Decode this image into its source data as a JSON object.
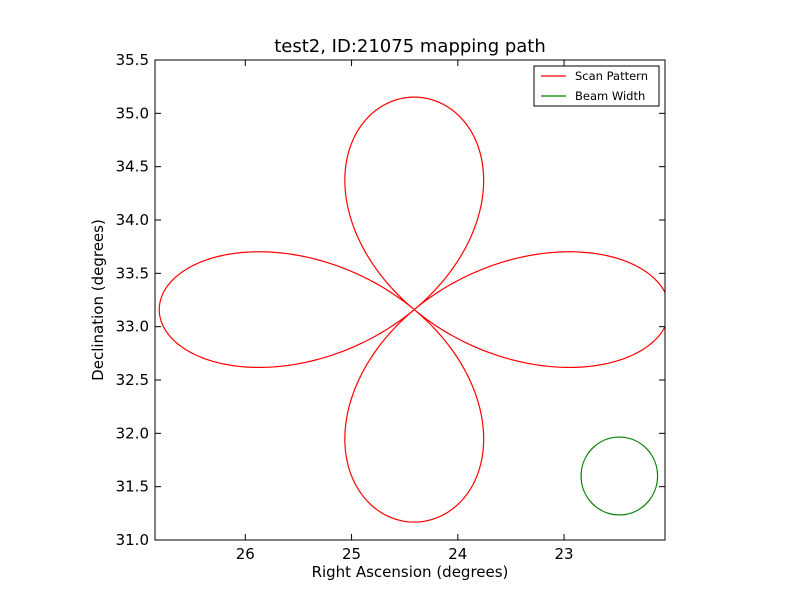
{
  "chart_data": {
    "type": "line",
    "title": "test2, ID:21075 mapping path",
    "xlabel": "Right Ascension (degrees)",
    "ylabel": "Declination (degrees)",
    "xlim": [
      26.85,
      22.05
    ],
    "ylim": [
      31.0,
      35.5
    ],
    "x_inverted": true,
    "xticks": [
      26,
      25,
      24,
      23
    ],
    "xtick_labels": [
      "26",
      "25",
      "24",
      "23"
    ],
    "yticks": [
      31.0,
      31.5,
      32.0,
      32.5,
      33.0,
      33.5,
      34.0,
      34.5,
      35.0,
      35.5
    ],
    "ytick_labels": [
      "31.0",
      "31.5",
      "32.0",
      "32.5",
      "33.0",
      "33.5",
      "34.0",
      "34.5",
      "35.0",
      "35.5"
    ],
    "grid": false,
    "legend_position": "top-right",
    "series": [
      {
        "name": "Scan Pattern",
        "color": "#ff0000",
        "shape": "four-petal rosette",
        "center": [
          24.41,
          33.16
        ],
        "petal_extent": 2.4,
        "petal_phase_deg": 0,
        "ra_scale": 1.0,
        "dec_scale": 0.83
      },
      {
        "name": "Beam Width",
        "color": "#008000",
        "shape": "circle",
        "center": [
          22.48,
          31.6
        ],
        "radius_ra": 0.36,
        "radius_dec": 0.365
      }
    ]
  }
}
